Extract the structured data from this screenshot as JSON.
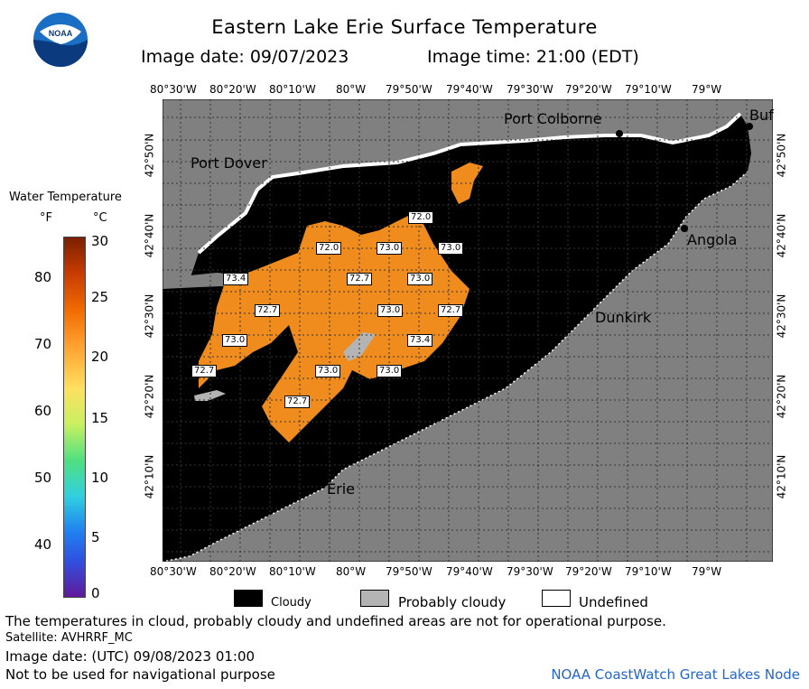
{
  "header": {
    "title": "Eastern Lake Erie Surface Temperature",
    "image_date": "Image date: 09/07/2023",
    "image_time": "Image time: 21:00 (EDT)",
    "logo_text": "NOAA"
  },
  "map": {
    "lon_ticks_top": [
      "80°30'W",
      "80°20'W",
      "80°10'W",
      "80°W",
      "79°50'W",
      "79°40'W",
      "79°30'W",
      "79°20'W",
      "79°10'W",
      "79°W"
    ],
    "lon_ticks_bottom": [
      "80°30'W",
      "80°20'W",
      "80°10'W",
      "80°W",
      "79°50'W",
      "79°40'W",
      "79°30'W",
      "79°20'W",
      "79°10'W",
      "79°W"
    ],
    "lat_ticks_left": [
      "42°50'N",
      "42°40'N",
      "42°30'N",
      "42°20'N",
      "42°10'N"
    ],
    "lat_ticks_right": [
      "42°50'N",
      "42°40'N",
      "42°30'N",
      "42°20'N",
      "42°10'N"
    ],
    "places": [
      "Port Colborne",
      "Port Dover",
      "Angola",
      "Dunkirk",
      "Erie",
      "Buf"
    ],
    "temperature_labels": [
      "72.0",
      "72.0",
      "73.0",
      "73.0",
      "73.4",
      "72.7",
      "73.0",
      "72.7",
      "73.0",
      "72.7",
      "73.0",
      "73.4",
      "72.7",
      "73.0",
      "73.0",
      "72.7"
    ]
  },
  "legend": {
    "title": "Water Temperature",
    "unit_f": "°F",
    "unit_c": "°C",
    "f_ticks": [
      "80",
      "70",
      "60",
      "50",
      "40"
    ],
    "c_ticks": [
      "30",
      "25",
      "20",
      "15",
      "10",
      "5",
      "0"
    ]
  },
  "key": {
    "cloudy": "Cloudy",
    "probably_cloudy": "Probably cloudy",
    "undefined": "Undefined"
  },
  "footer": {
    "disclaimer": "The temperatures in cloud, probably cloudy and undefined areas are not for operational purpose.",
    "satellite": "Satellite: AVHRRF_MC",
    "utc_date": "Image date: (UTC) 09/08/2023  01:00",
    "nav_warning": "Not to be used for navigational purpose",
    "credit": "NOAA CoastWatch Great Lakes Node"
  },
  "colors": {
    "land": "#808080",
    "cloud": "#000000",
    "water_warm": "#f08c1e",
    "probably_cloudy": "#b4b4b4",
    "undefined": "#ffffff"
  }
}
